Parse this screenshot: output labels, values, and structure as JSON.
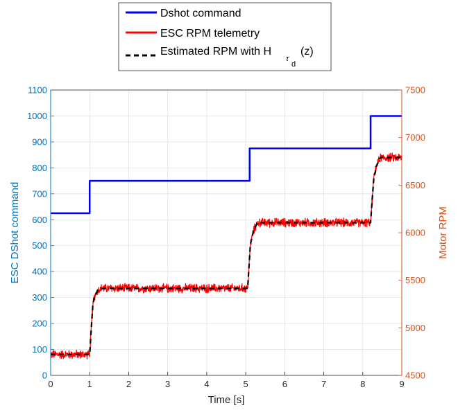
{
  "chart_data": {
    "type": "line",
    "xlabel": "Time [s]",
    "ylabel_left": "ESC DShot command",
    "ylabel_right": "Motor RPM",
    "xlim": [
      0,
      9
    ],
    "ylim_left": [
      0,
      1100
    ],
    "ylim_right": [
      4500,
      7500
    ],
    "x_ticks": [
      0,
      1,
      2,
      3,
      4,
      5,
      6,
      7,
      8,
      9
    ],
    "y_left_ticks": [
      0,
      100,
      200,
      300,
      400,
      500,
      600,
      700,
      800,
      900,
      1000,
      1100
    ],
    "y_right_ticks": [
      4500,
      5000,
      5500,
      6000,
      6500,
      7000,
      7500
    ],
    "grid": true,
    "legend_position": "top-center",
    "colors": {
      "dshot": "#0000ee",
      "telemetry": "#ff0000",
      "estimate": "#000000",
      "left_axis": "#0072bd",
      "right_axis": "#d95319",
      "grid": "#e2e2e2"
    },
    "series": [
      {
        "name": "Dshot command",
        "axis": "left",
        "style": "solid",
        "x": [
          0,
          1,
          1,
          5.1,
          5.1,
          8.2,
          8.2,
          9
        ],
        "y": [
          625,
          625,
          750,
          750,
          875,
          875,
          1000,
          1000
        ]
      },
      {
        "name": "ESC RPM telemetry",
        "axis": "right",
        "style": "noisy",
        "x": [
          0,
          1,
          1.02,
          1.05,
          1.08,
          1.12,
          1.2,
          1.3,
          5.05,
          5.08,
          5.12,
          5.2,
          5.3,
          8.2,
          8.24,
          8.28,
          8.35,
          8.45,
          9
        ],
        "y": [
          4720,
          4720,
          4850,
          5050,
          5230,
          5330,
          5390,
          5415,
          5415,
          5620,
          5880,
          6020,
          6105,
          6105,
          6340,
          6560,
          6700,
          6790,
          6790
        ],
        "noise_amplitude": 55
      },
      {
        "name": "Estimated RPM with H_τd(z)",
        "axis": "right",
        "style": "dashed",
        "x": [
          0,
          1,
          1.02,
          1.05,
          1.08,
          1.12,
          1.2,
          1.3,
          5.05,
          5.08,
          5.12,
          5.2,
          5.3,
          8.2,
          8.24,
          8.28,
          8.35,
          8.45,
          9
        ],
        "y": [
          4720,
          4720,
          4850,
          5050,
          5230,
          5330,
          5390,
          5415,
          5415,
          5620,
          5880,
          6020,
          6105,
          6105,
          6340,
          6560,
          6700,
          6790,
          6790
        ]
      }
    ],
    "legend": {
      "items": [
        {
          "text": "Dshot command"
        },
        {
          "text": "ESC RPM telemetry"
        },
        {
          "text": "Estimated RPM with H",
          "sub": "τ",
          "subsub": "d",
          "suffix": "(z)"
        }
      ]
    }
  }
}
